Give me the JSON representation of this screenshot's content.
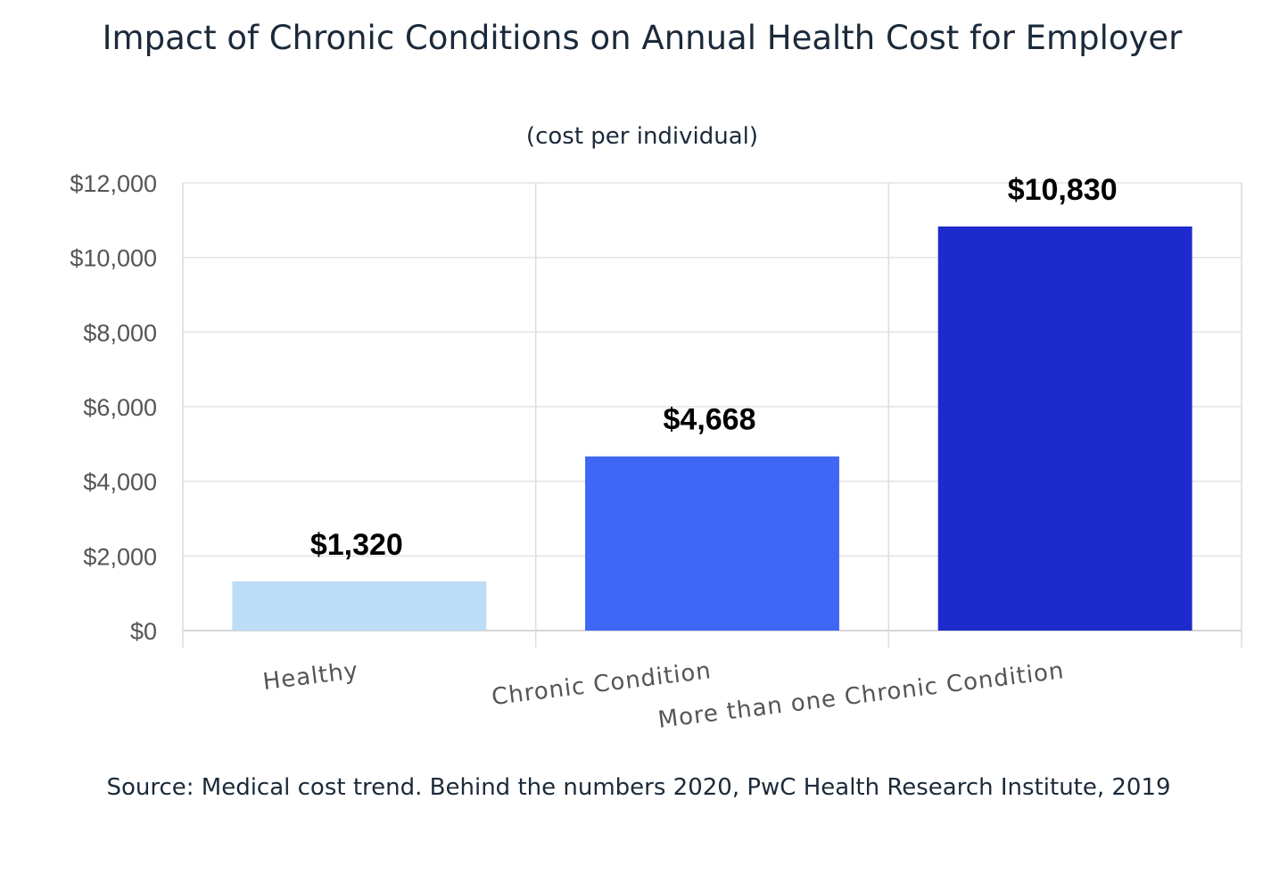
{
  "chart_data": {
    "type": "bar",
    "title": "Impact of Chronic Conditions on Annual Health Cost for Employer",
    "subtitle": "(cost per individual)",
    "categories": [
      "Healthy",
      "Chronic Condition",
      "More than one Chronic Condition"
    ],
    "values": [
      1320,
      4668,
      10830
    ],
    "data_labels": [
      "$1,320",
      "$4,668",
      "$10,830"
    ],
    "colors": [
      "#bddcf5",
      "#4066f5",
      "#1e2bcc"
    ],
    "ylim": [
      0,
      12000
    ],
    "yticks": [
      0,
      2000,
      4000,
      6000,
      8000,
      10000,
      12000
    ],
    "ytick_labels": [
      "$0",
      "$2,000",
      "$4,000",
      "$6,000",
      "$8,000",
      "$10,000",
      "$12,000"
    ],
    "xlabel": "",
    "ylabel": "",
    "grid": true,
    "source": "Source: Medical cost trend. Behind the numbers 2020, PwC Health Research Institute, 2019"
  }
}
